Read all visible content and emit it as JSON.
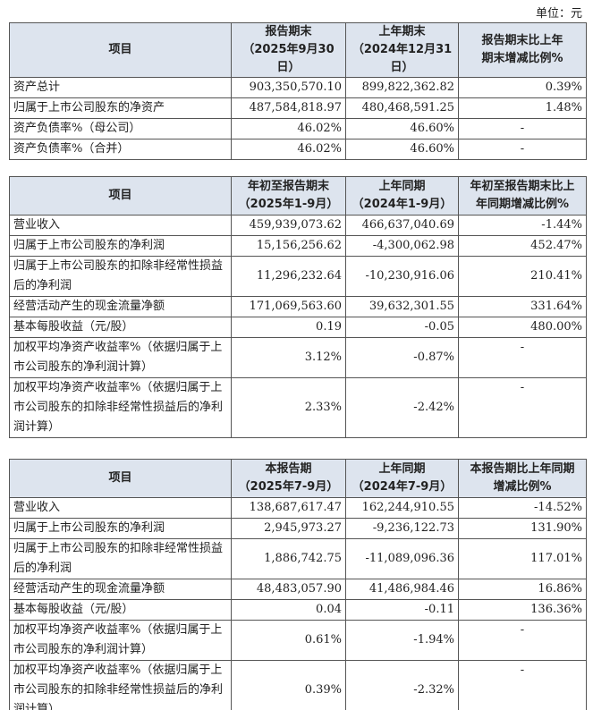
{
  "unit": "单位：元",
  "tables": [
    {
      "headers": [
        [
          "项目"
        ],
        [
          "报告期末",
          "（2025年9月30日）"
        ],
        [
          "上年期末",
          "（2024年12月31日）"
        ],
        [
          "报告期末比上年",
          "期末增减比例%"
        ]
      ],
      "rows": [
        [
          "资产总计",
          "903,350,570.10",
          "899,822,362.82",
          "0.39%"
        ],
        [
          "归属于上市公司股东的净资产",
          "487,584,818.97",
          "480,468,591.25",
          "1.48%"
        ],
        [
          "资产负债率%（母公司）",
          "46.02%",
          "46.60%",
          "-"
        ],
        [
          "资产负债率%（合并）",
          "46.02%",
          "46.60%",
          "-"
        ]
      ]
    },
    {
      "headers": [
        [
          "项目"
        ],
        [
          "年初至报告期末",
          "（2025年1-9月）"
        ],
        [
          "上年同期",
          "（2024年1-9月）"
        ],
        [
          "年初至报告期末比上",
          "年同期增减比例%"
        ]
      ],
      "rows": [
        [
          "营业收入",
          "459,939,073.62",
          "466,637,040.69",
          "-1.44%"
        ],
        [
          "归属于上市公司股东的净利润",
          "15,156,256.62",
          "-4,300,062.98",
          "452.47%"
        ],
        [
          "归属于上市公司股东的扣除非经常性损益后的净利润",
          "11,296,232.64",
          "-10,230,916.06",
          "210.41%"
        ],
        [
          "经营活动产生的现金流量净额",
          "171,069,563.60",
          "39,632,301.55",
          "331.64%"
        ],
        [
          "基本每股收益（元/股）",
          "0.19",
          "-0.05",
          "480.00%"
        ],
        [
          "加权平均净资产收益率%（依据归属于上市公司股东的净利润计算）",
          "3.12%",
          "-0.87%",
          "-"
        ],
        [
          "加权平均净资产收益率%（依据归属于上市公司股东的扣除非经常性损益后的净利润计算）",
          "2.33%",
          "-2.42%",
          "-"
        ]
      ]
    },
    {
      "headers": [
        [
          "项目"
        ],
        [
          "本报告期",
          "（2025年7-9月）"
        ],
        [
          "上年同期",
          "（2024年7-9月）"
        ],
        [
          "本报告期比上年同期",
          "增减比例%"
        ]
      ],
      "rows": [
        [
          "营业收入",
          "138,687,617.47",
          "162,244,910.55",
          "-14.52%"
        ],
        [
          "归属于上市公司股东的净利润",
          "2,945,973.27",
          "-9,236,122.73",
          "131.90%"
        ],
        [
          "归属于上市公司股东的扣除非经常性损益后的净利润",
          "1,886,742.75",
          "-11,089,096.36",
          "117.01%"
        ],
        [
          "经营活动产生的现金流量净额",
          "48,483,057.90",
          "41,486,984.46",
          "16.86%"
        ],
        [
          "基本每股收益（元/股）",
          "0.04",
          "-0.11",
          "136.36%"
        ],
        [
          "加权平均净资产收益率%（依据归属于上市公司股东的净利润计算）",
          "0.61%",
          "-1.94%",
          "-"
        ],
        [
          "加权平均净资产收益率%（依据归属于上市公司股东的扣除非经常性损益后的净利润计算）",
          "0.39%",
          "-2.32%",
          "-"
        ]
      ]
    }
  ]
}
